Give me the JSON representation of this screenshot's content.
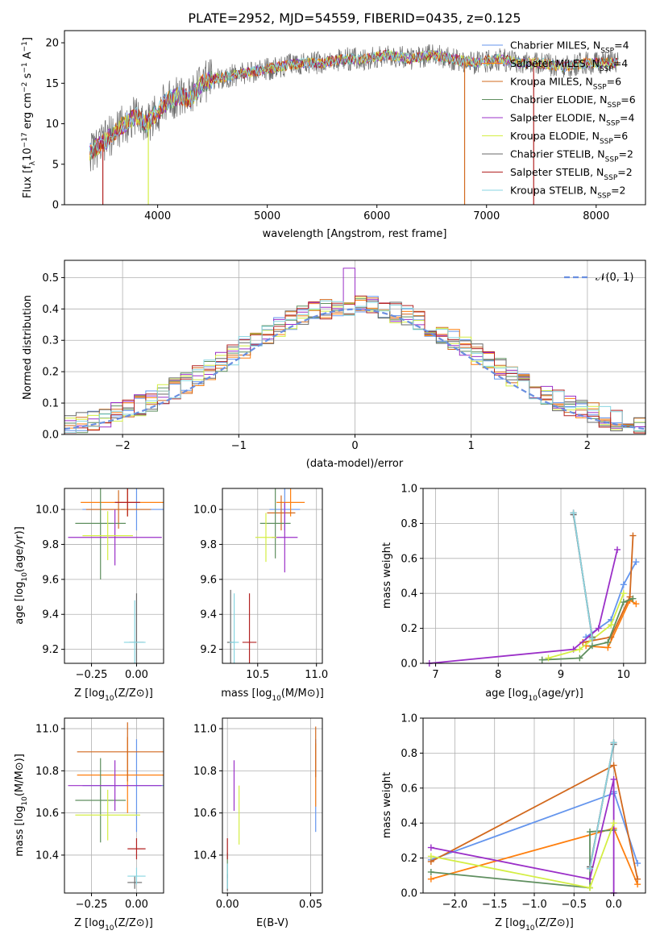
{
  "figure": {
    "title": "PLATE=2952, MJD=54559, FIBERID=0435, z=0.125"
  },
  "series": [
    {
      "name": "Chabrier MILES",
      "nssp": "4",
      "color": "#6495ed"
    },
    {
      "name": "Salpeter MILES",
      "nssp": "4",
      "color": "#ff7f0e"
    },
    {
      "name": "Kroupa MILES",
      "nssp": "6",
      "color": "#d2691e"
    },
    {
      "name": "Chabrier ELODIE",
      "nssp": "6",
      "color": "#5f8f5f"
    },
    {
      "name": "Salpeter ELODIE",
      "nssp": "4",
      "color": "#9b30c8"
    },
    {
      "name": "Kroupa ELODIE",
      "nssp": "6",
      "color": "#d4ee44"
    },
    {
      "name": "Chabrier STELIB",
      "nssp": "2",
      "color": "#696969"
    },
    {
      "name": "Salpeter STELIB",
      "nssp": "2",
      "color": "#b22222"
    },
    {
      "name": "Kroupa STELIB",
      "nssp": "2",
      "color": "#87d5e0"
    }
  ],
  "chart_data": [
    {
      "id": "spectrum",
      "type": "line",
      "title": "PLATE=2952, MJD=54559, FIBERID=0435, z=0.125",
      "xlabel": "wavelength [Angstrom, rest frame]",
      "ylabel": "Flux [f",
      "xlim": [
        3150,
        8450
      ],
      "ylim": [
        0,
        21.5
      ],
      "xticks": [
        4000,
        5000,
        6000,
        7000,
        8000
      ],
      "yticks": [
        0,
        5,
        10,
        15,
        20
      ],
      "grid": false,
      "legend": "right",
      "envelope": [
        {
          "x": 3380,
          "y": 6.5
        },
        {
          "x": 3500,
          "y": 7.5
        },
        {
          "x": 3600,
          "y": 9
        },
        {
          "x": 3700,
          "y": 10
        },
        {
          "x": 3800,
          "y": 11
        },
        {
          "x": 3900,
          "y": 10
        },
        {
          "x": 4000,
          "y": 11.5
        },
        {
          "x": 4100,
          "y": 13
        },
        {
          "x": 4200,
          "y": 13.5
        },
        {
          "x": 4300,
          "y": 13
        },
        {
          "x": 4400,
          "y": 15
        },
        {
          "x": 4500,
          "y": 15.5
        },
        {
          "x": 4700,
          "y": 16
        },
        {
          "x": 4900,
          "y": 16.5
        },
        {
          "x": 5100,
          "y": 17
        },
        {
          "x": 5300,
          "y": 17.5
        },
        {
          "x": 5500,
          "y": 17.5
        },
        {
          "x": 5700,
          "y": 18
        },
        {
          "x": 5900,
          "y": 18
        },
        {
          "x": 6100,
          "y": 18.5
        },
        {
          "x": 6300,
          "y": 18
        },
        {
          "x": 6500,
          "y": 18.5
        },
        {
          "x": 6700,
          "y": 18
        },
        {
          "x": 6900,
          "y": 17.5
        },
        {
          "x": 7100,
          "y": 18
        },
        {
          "x": 7300,
          "y": 17.5
        },
        {
          "x": 7500,
          "y": 17.5
        },
        {
          "x": 7700,
          "y": 17
        },
        {
          "x": 7900,
          "y": 17.5
        },
        {
          "x": 8200,
          "y": 17.5
        }
      ],
      "drops": [
        {
          "x": 3500,
          "color": "#b22222"
        },
        {
          "x": 3915,
          "color": "#d4ee44"
        },
        {
          "x": 6800,
          "color": "#d2691e"
        },
        {
          "x": 7430,
          "color": "#b22222"
        }
      ]
    },
    {
      "id": "residuals",
      "type": "bar",
      "xlabel": "(data-model)/error",
      "ylabel": "Normed distribution",
      "xlim": [
        -2.5,
        2.5
      ],
      "ylim": [
        0,
        0.555
      ],
      "xticks": [
        -2,
        -1,
        0,
        1,
        2
      ],
      "yticks": [
        0.0,
        0.1,
        0.2,
        0.3,
        0.4,
        0.5
      ],
      "grid": true,
      "legend": "top-right",
      "normal_label": "𝒩(0, 1)",
      "normal_color": "#6a8fe0",
      "bin_width": 0.1
    },
    {
      "id": "Z-age",
      "type": "scatter",
      "xlabel": "Z [log",
      "ylabel": "age  [log",
      "xlim": [
        -0.4,
        0.15
      ],
      "ylim": [
        9.12,
        10.12
      ],
      "xticks": [
        -0.25,
        0.0
      ],
      "yticks": [
        9.2,
        9.4,
        9.6,
        9.8,
        10.0
      ],
      "points": [
        {
          "x": 0.0,
          "y": 10.0,
          "xerr": 0.3,
          "yerr": 0.12,
          "s": 0
        },
        {
          "x": -0.05,
          "y": 10.04,
          "xerr": 0.26,
          "yerr": 0.08,
          "s": 1
        },
        {
          "x": -0.1,
          "y": 10.0,
          "xerr": 0.18,
          "yerr": 0.11,
          "s": 2
        },
        {
          "x": -0.2,
          "y": 9.92,
          "xerr": 0.14,
          "yerr": 0.32,
          "s": 3
        },
        {
          "x": -0.12,
          "y": 9.84,
          "xerr": 0.26,
          "yerr": 0.16,
          "s": 4
        },
        {
          "x": -0.16,
          "y": 9.85,
          "xerr": 0.14,
          "yerr": 0.14,
          "s": 5
        },
        {
          "x": 0.0,
          "y": 9.24,
          "xerr": 0.04,
          "yerr": 0.28,
          "s": 6
        },
        {
          "x": -0.05,
          "y": 10.04,
          "xerr": 0.07,
          "yerr": 0.08,
          "s": 7
        },
        {
          "x": -0.01,
          "y": 9.24,
          "xerr": 0.06,
          "yerr": 0.24,
          "s": 8
        }
      ]
    },
    {
      "id": "mass-age",
      "type": "scatter",
      "xlabel": "mass [log",
      "ylabel": "",
      "xlim": [
        10.2,
        11.05
      ],
      "ylim": [
        9.12,
        10.12
      ],
      "xticks": [
        10.5,
        11.0
      ],
      "yticks": [
        9.2,
        9.4,
        9.6,
        9.8,
        10.0
      ],
      "points": [
        {
          "x": 10.73,
          "y": 10.0,
          "xerr": 0.13,
          "yerr": 0.12,
          "s": 0
        },
        {
          "x": 10.78,
          "y": 10.04,
          "xerr": 0.12,
          "yerr": 0.08,
          "s": 1
        },
        {
          "x": 10.7,
          "y": 9.98,
          "xerr": 0.12,
          "yerr": 0.1,
          "s": 2
        },
        {
          "x": 10.65,
          "y": 9.92,
          "xerr": 0.13,
          "yerr": 0.2,
          "s": 3
        },
        {
          "x": 10.73,
          "y": 9.84,
          "xerr": 0.11,
          "yerr": 0.2,
          "s": 4
        },
        {
          "x": 10.57,
          "y": 9.84,
          "xerr": 0.09,
          "yerr": 0.14,
          "s": 5
        },
        {
          "x": 10.27,
          "y": 9.24,
          "xerr": 0.03,
          "yerr": 0.3,
          "s": 6
        },
        {
          "x": 10.43,
          "y": 9.24,
          "xerr": 0.06,
          "yerr": 0.28,
          "s": 7
        },
        {
          "x": 10.3,
          "y": 9.24,
          "xerr": 0.04,
          "yerr": 0.28,
          "s": 8
        }
      ]
    },
    {
      "id": "age-weight",
      "type": "line",
      "xlabel": "age  [log",
      "ylabel": "mass weight",
      "xlim": [
        6.8,
        10.35
      ],
      "ylim": [
        0,
        1.0
      ],
      "xticks": [
        7,
        8,
        9,
        10
      ],
      "yticks": [
        0.0,
        0.2,
        0.4,
        0.6,
        0.8,
        1.0
      ],
      "grid": true,
      "lines": [
        {
          "s": 0,
          "x": [
            9.4,
            9.8,
            10.0,
            10.2
          ],
          "y": [
            0.15,
            0.25,
            0.45,
            0.58
          ]
        },
        {
          "s": 1,
          "x": [
            9.4,
            9.75,
            10.1,
            10.2
          ],
          "y": [
            0.1,
            0.09,
            0.36,
            0.34
          ]
        },
        {
          "s": 2,
          "x": [
            9.35,
            9.8,
            10.1,
            10.15
          ],
          "y": [
            0.12,
            0.15,
            0.38,
            0.73
          ]
        },
        {
          "s": 3,
          "x": [
            8.7,
            9.3,
            9.5,
            9.75,
            10.0,
            10.15
          ],
          "y": [
            0.02,
            0.03,
            0.1,
            0.12,
            0.35,
            0.37
          ]
        },
        {
          "s": 4,
          "x": [
            6.9,
            9.2,
            9.6,
            9.9
          ],
          "y": [
            0.0,
            0.08,
            0.2,
            0.65
          ]
        },
        {
          "s": 5,
          "x": [
            8.8,
            9.3,
            9.8,
            10.0
          ],
          "y": [
            0.03,
            0.08,
            0.22,
            0.4
          ]
        },
        {
          "s": 6,
          "x": [
            9.2,
            9.5
          ],
          "y": [
            0.85,
            0.15
          ]
        },
        {
          "s": 7,
          "x": [
            9.2,
            9.5
          ],
          "y": [
            0.86,
            0.14
          ]
        },
        {
          "s": 8,
          "x": [
            9.2,
            9.5
          ],
          "y": [
            0.86,
            0.14
          ]
        }
      ]
    },
    {
      "id": "Z-mass",
      "type": "scatter",
      "xlabel": "Z [log",
      "ylabel": "mass [log",
      "xlim": [
        -0.4,
        0.15
      ],
      "ylim": [
        10.22,
        11.05
      ],
      "xticks": [
        -0.25,
        0.0
      ],
      "yticks": [
        10.4,
        10.6,
        10.8,
        11.0
      ],
      "points": [
        {
          "x": 0.0,
          "y": 10.73,
          "xerr": 0.3,
          "yerr": 0.22,
          "s": 0
        },
        {
          "x": -0.05,
          "y": 10.78,
          "xerr": 0.28,
          "yerr": 0.18,
          "s": 1
        },
        {
          "x": -0.05,
          "y": 10.89,
          "xerr": 0.28,
          "yerr": 0.14,
          "s": 2
        },
        {
          "x": -0.2,
          "y": 10.66,
          "xerr": 0.14,
          "yerr": 0.2,
          "s": 3
        },
        {
          "x": -0.12,
          "y": 10.73,
          "xerr": 0.26,
          "yerr": 0.12,
          "s": 4
        },
        {
          "x": -0.16,
          "y": 10.59,
          "xerr": 0.18,
          "yerr": 0.12,
          "s": 5
        },
        {
          "x": -0.01,
          "y": 10.27,
          "xerr": 0.04,
          "yerr": 0.03,
          "s": 6
        },
        {
          "x": 0.0,
          "y": 10.43,
          "xerr": 0.05,
          "yerr": 0.05,
          "s": 7
        },
        {
          "x": 0.0,
          "y": 10.3,
          "xerr": 0.05,
          "yerr": 0.04,
          "s": 8
        }
      ]
    },
    {
      "id": "ebv-mass",
      "type": "scatter",
      "xlabel": "E(B-V)",
      "ylabel": "",
      "xlim": [
        -0.003,
        0.057
      ],
      "ylim": [
        10.22,
        11.05
      ],
      "xticks": [
        0.0,
        0.05
      ],
      "yticks": [
        10.4,
        10.6,
        10.8,
        11.0
      ],
      "points": [
        {
          "x": 0.053,
          "y": 10.73,
          "xerr": 0,
          "yerr": 0.22,
          "s": 0
        },
        {
          "x": 0.053,
          "y": 10.78,
          "xerr": 0,
          "yerr": 0.15,
          "s": 1
        },
        {
          "x": 0.053,
          "y": 10.89,
          "xerr": 0,
          "yerr": 0.12,
          "s": 2
        },
        {
          "x": 0.0,
          "y": 10.35,
          "xerr": 0,
          "yerr": 0.06,
          "s": 3
        },
        {
          "x": 0.004,
          "y": 10.73,
          "xerr": 0,
          "yerr": 0.12,
          "s": 4
        },
        {
          "x": 0.007,
          "y": 10.59,
          "xerr": 0,
          "yerr": 0.14,
          "s": 5
        },
        {
          "x": 0.0,
          "y": 10.27,
          "xerr": 0,
          "yerr": 0.04,
          "s": 6
        },
        {
          "x": 0.0,
          "y": 10.43,
          "xerr": 0,
          "yerr": 0.05,
          "s": 7
        },
        {
          "x": 0.0,
          "y": 10.3,
          "xerr": 0,
          "yerr": 0.06,
          "s": 8
        }
      ]
    },
    {
      "id": "Z-weight",
      "type": "line",
      "xlabel": "Z [log",
      "ylabel": "mass weight",
      "xlim": [
        -2.4,
        0.4
      ],
      "ylim": [
        0,
        1.0
      ],
      "xticks": [
        -2.0,
        -1.5,
        -1.0,
        -0.5,
        0.0
      ],
      "yticks": [
        0.0,
        0.2,
        0.4,
        0.6,
        0.8,
        1.0
      ],
      "grid": true,
      "lines": [
        {
          "s": 0,
          "x": [
            -2.3,
            0.0,
            0.0,
            0.3
          ],
          "y": [
            0.19,
            0.57,
            0.58,
            0.17
          ]
        },
        {
          "s": 1,
          "x": [
            -2.3,
            0.0,
            0.3
          ],
          "y": [
            0.08,
            0.37,
            0.05
          ]
        },
        {
          "s": 2,
          "x": [
            -2.3,
            0.0,
            0.3
          ],
          "y": [
            0.18,
            0.73,
            0.08
          ]
        },
        {
          "s": 3,
          "x": [
            -2.3,
            -0.3,
            -0.3,
            0.0
          ],
          "y": [
            0.12,
            0.03,
            0.35,
            0.36
          ]
        },
        {
          "s": 4,
          "x": [
            -2.3,
            -0.3,
            0.0,
            0.0
          ],
          "y": [
            0.26,
            0.08,
            0.65,
            0.0
          ]
        },
        {
          "s": 5,
          "x": [
            -2.3,
            -0.3,
            0.0
          ],
          "y": [
            0.21,
            0.03,
            0.4
          ]
        },
        {
          "s": 6,
          "x": [
            -0.3,
            0.0
          ],
          "y": [
            0.15,
            0.85
          ]
        },
        {
          "s": 7,
          "x": [
            -0.3,
            0.0
          ],
          "y": [
            0.14,
            0.86
          ]
        },
        {
          "s": 8,
          "x": [
            -0.3,
            0.0
          ],
          "y": [
            0.14,
            0.86
          ]
        }
      ]
    }
  ]
}
